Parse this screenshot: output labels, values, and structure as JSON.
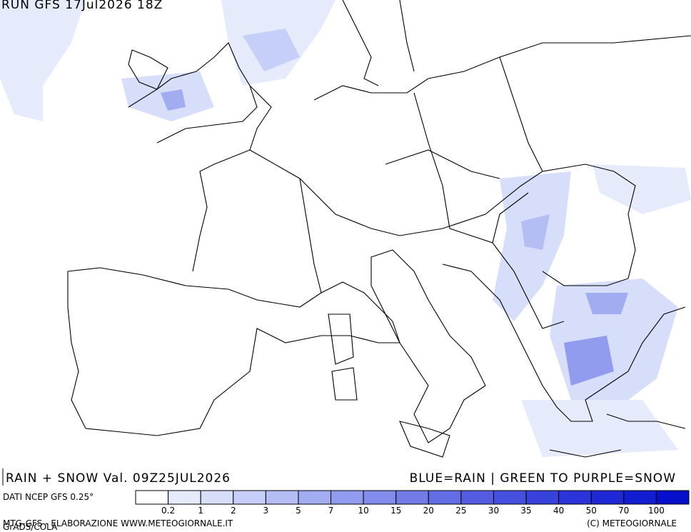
{
  "header": {
    "run": "RUN GFS 17Jul2026 18Z"
  },
  "footer": {
    "title": "RAIN + SNOW Val. 09Z25JUL2026",
    "legend_note": "BLUE=RAIN | GREEN TO PURPLE=SNOW",
    "source": "DATI NCEP GFS 0.25°",
    "credit_left": "MTG-GFS - ELABORAZIONE WWW.METEOGIORNALE.IT",
    "credit_right": "(C) METEOGIORNALE",
    "grads": "GrADS/COLA"
  },
  "colorbar": {
    "labels": [
      "0.2",
      "1",
      "2",
      "3",
      "5",
      "7",
      "10",
      "15",
      "20",
      "25",
      "30",
      "35",
      "40",
      "50",
      "70",
      "100"
    ],
    "colors": [
      "#ffffff",
      "#e6ebfc",
      "#d6defa",
      "#c6cff7",
      "#b4bdf4",
      "#a2acf1",
      "#929cee",
      "#828cea",
      "#727ce7",
      "#636de4",
      "#545de1",
      "#4550de",
      "#3742db",
      "#2a34d8",
      "#1e28d4",
      "#121cd0",
      "#0610cc"
    ]
  }
}
